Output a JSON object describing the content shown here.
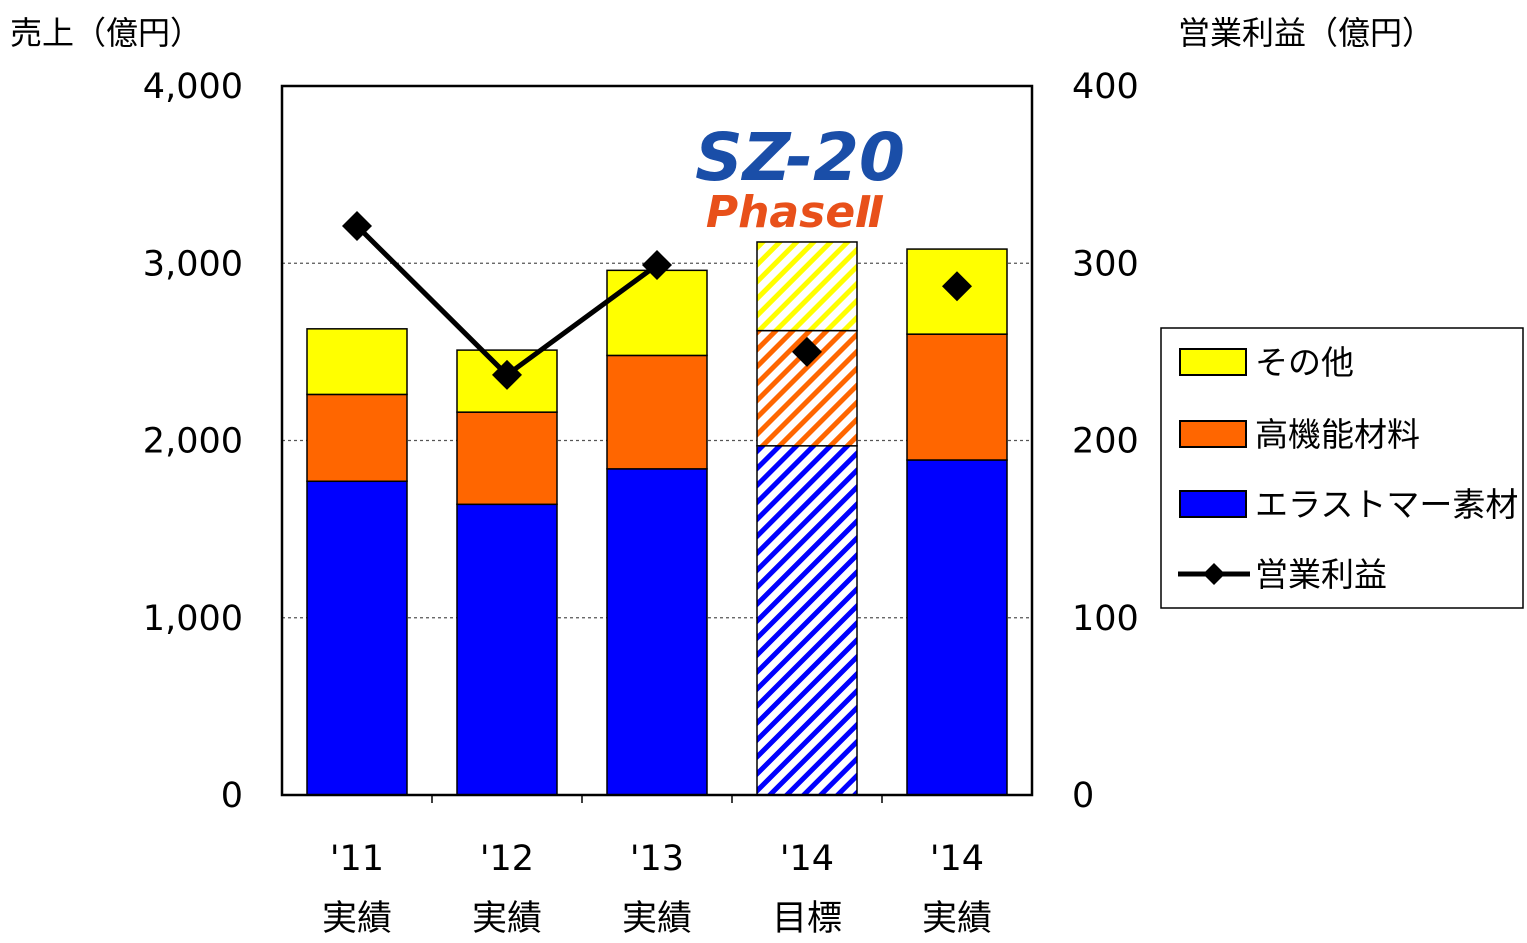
{
  "chart_data": {
    "type": "bar",
    "stacked": true,
    "left_axis_title": "売上（億円）",
    "right_axis_title": "営業利益（億円）",
    "ylim": [
      0,
      4000
    ],
    "y2lim": [
      0,
      400
    ],
    "y_ticks": [
      "0",
      "1,000",
      "2,000",
      "3,000",
      "4,000"
    ],
    "y2_ticks": [
      "0",
      "100",
      "200",
      "300",
      "400"
    ],
    "y_tick_values": [
      0,
      1000,
      2000,
      3000,
      4000
    ],
    "grid": "horizontal dashed",
    "legend_position": "right",
    "categories": [
      {
        "year": "'11",
        "label": "実績",
        "hatched": false
      },
      {
        "year": "'12",
        "label": "実績",
        "hatched": false
      },
      {
        "year": "'13",
        "label": "実績",
        "hatched": false
      },
      {
        "year": "'14",
        "label": "目標",
        "hatched": true
      },
      {
        "year": "'14",
        "label": "実績",
        "hatched": false
      }
    ],
    "series": [
      {
        "name": "エラストマー素材",
        "color": "#0000ff",
        "values": [
          1770,
          1640,
          1840,
          1970,
          1890
        ]
      },
      {
        "name": "高機能材料",
        "color": "#ff6600",
        "values": [
          490,
          520,
          640,
          650,
          710
        ]
      },
      {
        "name": "その他",
        "color": "#ffff00",
        "values": [
          370,
          350,
          480,
          500,
          480
        ]
      }
    ],
    "line_series": {
      "name": "営業利益",
      "color": "#000000",
      "values": [
        321,
        237,
        299,
        250,
        287
      ],
      "connected_points": 3
    },
    "legend": [
      {
        "name": "その他",
        "kind": "box",
        "color": "#ffff00"
      },
      {
        "name": "高機能材料",
        "kind": "box",
        "color": "#ff6600"
      },
      {
        "name": "エラストマー素材",
        "kind": "box",
        "color": "#0000ff"
      },
      {
        "name": "営業利益",
        "kind": "line",
        "color": "#000000"
      }
    ]
  },
  "logo": {
    "line1": "SZ-20",
    "line2": "PhaseⅡ",
    "line1_color": "#1a4ea8",
    "line2_color": "#e8501a"
  }
}
